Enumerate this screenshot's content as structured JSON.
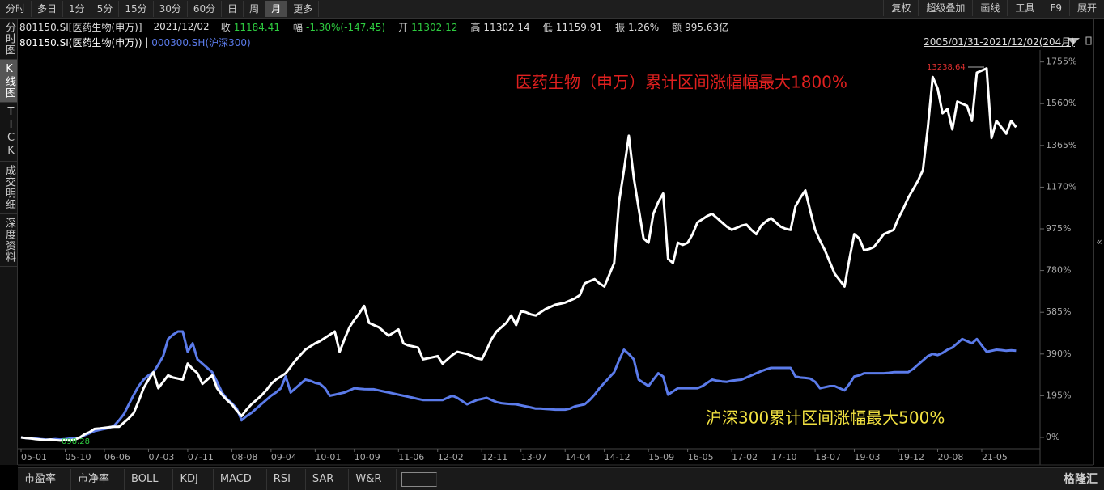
{
  "toolbar": {
    "periods": [
      "分时",
      "多日",
      "1分",
      "5分",
      "15分",
      "30分",
      "60分",
      "日",
      "周",
      "月",
      "更多"
    ],
    "tools": [
      "复权",
      "超级叠加",
      "画线",
      "工具",
      "F9",
      "展开"
    ]
  },
  "sidebar": [
    "分时图",
    "K线图",
    "TICK",
    "成交明细",
    "深度资料"
  ],
  "info": {
    "code": "801150.SI[医药生物(申万)]",
    "date": "2021/12/02",
    "fields": [
      {
        "label": "收",
        "value": "11184.41"
      },
      {
        "label": "幅",
        "value": "-1.30%(-147.45)"
      },
      {
        "label": "开",
        "value": "11302.12"
      },
      {
        "label": "高",
        "value": "11302.14"
      },
      {
        "label": "低",
        "value": "11159.91"
      },
      {
        "label": "振",
        "value": "1.26%"
      },
      {
        "label": "额",
        "value": "995.63亿"
      }
    ]
  },
  "range": "2005/01/31-2021/12/02(204月)",
  "bottom_tabs": [
    "市盈率",
    "市净率",
    "BOLL",
    "KDJ",
    "MACD",
    "RSI",
    "SAR",
    "W&R"
  ],
  "logo": "格隆汇",
  "chart_data": {
    "type": "line",
    "annotations": [
      "医药生物（申万）累计区间涨幅幅最大1800%",
      "沪深300累计区间涨幅最大500%"
    ],
    "peak_label": "13238.64",
    "low_label": "098.28",
    "categories": [
      "05-01",
      null,
      null,
      null,
      null,
      null,
      null,
      null,
      null,
      "05-10",
      null,
      null,
      null,
      null,
      null,
      null,
      null,
      "06-06",
      null,
      null,
      null,
      null,
      null,
      null,
      null,
      null,
      "07-03",
      null,
      null,
      null,
      null,
      null,
      null,
      null,
      "07-11",
      null,
      null,
      null,
      null,
      null,
      null,
      null,
      null,
      "08-08",
      null,
      null,
      null,
      null,
      null,
      null,
      null,
      "09-04",
      null,
      null,
      null,
      null,
      null,
      null,
      null,
      null,
      "10-01",
      null,
      null,
      null,
      null,
      null,
      null,
      null,
      "10-09",
      null,
      null,
      null,
      null,
      null,
      null,
      null,
      null,
      "11-06",
      null,
      null,
      null,
      null,
      null,
      null,
      null,
      "12-02",
      null,
      null,
      null,
      null,
      null,
      null,
      null,
      null,
      "12-11",
      null,
      null,
      null,
      null,
      null,
      null,
      null,
      "13-07",
      null,
      null,
      null,
      null,
      null,
      null,
      null,
      null,
      "14-04",
      null,
      null,
      null,
      null,
      null,
      null,
      null,
      "14-12",
      null,
      null,
      null,
      null,
      null,
      null,
      null,
      null,
      "15-09",
      null,
      null,
      null,
      null,
      null,
      null,
      null,
      "16-05",
      null,
      null,
      null,
      null,
      null,
      null,
      null,
      null,
      "17-02",
      null,
      null,
      null,
      null,
      null,
      null,
      null,
      "17-10",
      null,
      null,
      null,
      null,
      null,
      null,
      null,
      null,
      "18-07",
      null,
      null,
      null,
      null,
      null,
      null,
      null,
      "19-03",
      null,
      null,
      null,
      null,
      null,
      null,
      null,
      null,
      "19-12",
      null,
      null,
      null,
      null,
      null,
      null,
      null,
      "20-08",
      null,
      null,
      null,
      null,
      null,
      null,
      null,
      null,
      "21-05",
      null,
      null,
      null,
      null,
      null,
      null,
      null
    ],
    "series": [
      {
        "name": "801150.SI(医药生物(申万))",
        "color": "#ffffff",
        "values": [
          0,
          -3,
          -5,
          -8,
          -10,
          -12,
          -10,
          -13,
          -15,
          -12,
          -15,
          -10,
          0,
          15,
          25,
          40,
          42,
          45,
          48,
          50,
          50,
          70,
          90,
          115,
          170,
          230,
          270,
          305,
          230,
          260,
          290,
          280,
          275,
          270,
          345,
          320,
          300,
          250,
          270,
          290,
          230,
          200,
          175,
          155,
          125,
          100,
          130,
          155,
          175,
          195,
          220,
          250,
          270,
          285,
          300,
          330,
          360,
          385,
          410,
          425,
          440,
          450,
          465,
          480,
          495,
          400,
          460,
          515,
          550,
          580,
          615,
          535,
          525,
          515,
          495,
          475,
          490,
          505,
          440,
          430,
          425,
          420,
          365,
          370,
          375,
          380,
          345,
          365,
          385,
          400,
          395,
          390,
          380,
          370,
          365,
          410,
          460,
          495,
          515,
          535,
          570,
          525,
          590,
          585,
          575,
          570,
          585,
          600,
          610,
          620,
          625,
          630,
          640,
          650,
          665,
          720,
          730,
          740,
          720,
          705,
          760,
          815,
          1100,
          1250,
          1410,
          1215,
          1070,
          930,
          910,
          1045,
          1100,
          1140,
          835,
          815,
          910,
          900,
          910,
          950,
          1005,
          1020,
          1035,
          1045,
          1025,
          1005,
          985,
          970,
          980,
          990,
          995,
          970,
          950,
          990,
          1010,
          1025,
          1005,
          985,
          975,
          970,
          1080,
          1120,
          1155,
          1060,
          970,
          920,
          875,
          820,
          765,
          735,
          705,
          835,
          950,
          930,
          875,
          880,
          890,
          920,
          950,
          960,
          970,
          1025,
          1070,
          1120,
          1160,
          1200,
          1250,
          1450,
          1685,
          1630,
          1515,
          1535,
          1440,
          1570,
          1560,
          1550,
          1480,
          1705,
          1715,
          1725,
          1400,
          1480,
          1450,
          1420,
          1480,
          1450
        ]
      },
      {
        "name": "000300.SH(沪深300)",
        "color": "#5b7bea",
        "values": [
          0,
          -3,
          -5,
          -5,
          -8,
          -10,
          -10,
          -8,
          -10,
          -8,
          -5,
          -5,
          0,
          10,
          20,
          30,
          35,
          40,
          45,
          55,
          80,
          110,
          155,
          200,
          240,
          270,
          290,
          305,
          340,
          380,
          460,
          480,
          495,
          495,
          400,
          440,
          365,
          345,
          325,
          305,
          260,
          210,
          180,
          160,
          135,
          80,
          100,
          115,
          135,
          155,
          175,
          195,
          210,
          230,
          285,
          210,
          230,
          250,
          270,
          265,
          255,
          250,
          230,
          195,
          200,
          205,
          210,
          220,
          230,
          228,
          226,
          225,
          225,
          220,
          215,
          210,
          205,
          200,
          195,
          190,
          185,
          180,
          175,
          175,
          175,
          175,
          175,
          185,
          195,
          185,
          170,
          155,
          165,
          175,
          180,
          185,
          175,
          165,
          160,
          158,
          156,
          155,
          150,
          145,
          140,
          135,
          135,
          133,
          132,
          130,
          130,
          130,
          135,
          145,
          150,
          155,
          175,
          200,
          230,
          255,
          280,
          305,
          360,
          410,
          390,
          365,
          270,
          255,
          240,
          270,
          300,
          285,
          200,
          215,
          230,
          230,
          230,
          230,
          230,
          240,
          255,
          270,
          265,
          262,
          260,
          265,
          268,
          270,
          280,
          290,
          300,
          310,
          318,
          325,
          325,
          325,
          325,
          325,
          285,
          280,
          278,
          275,
          260,
          230,
          235,
          240,
          240,
          230,
          220,
          250,
          285,
          290,
          300,
          300,
          300,
          300,
          300,
          302,
          305,
          305,
          305,
          305,
          320,
          340,
          360,
          380,
          390,
          385,
          395,
          410,
          420,
          440,
          460,
          450,
          440,
          460,
          430,
          400,
          405,
          410,
          408,
          405,
          407,
          405
        ]
      }
    ],
    "ylim": [
      -53,
      1799
    ],
    "yticks": [
      {
        "value": 0,
        "label": "0%"
      },
      {
        "value": 195,
        "label": "195%"
      },
      {
        "value": 390,
        "label": "390%"
      },
      {
        "value": 585,
        "label": "585%"
      },
      {
        "value": 780,
        "label": "780%"
      },
      {
        "value": 975,
        "label": "975%"
      },
      {
        "value": 1170,
        "label": "1170%"
      },
      {
        "value": 1365,
        "label": "1365%"
      },
      {
        "value": 1560,
        "label": "1560%"
      },
      {
        "value": 1755,
        "label": "1755%"
      }
    ],
    "grid": false
  }
}
